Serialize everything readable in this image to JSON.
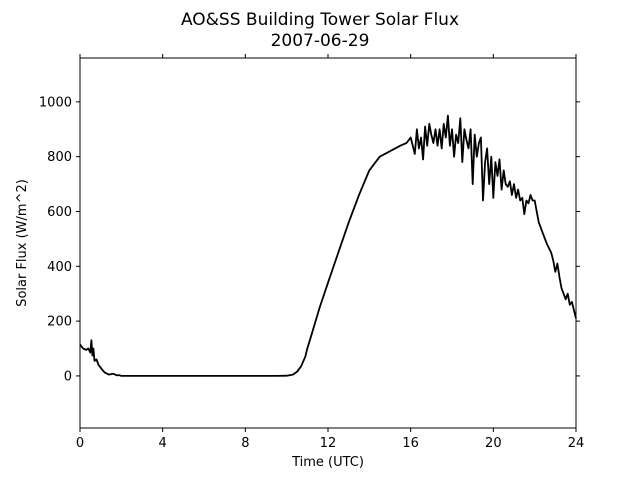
{
  "chart_data": {
    "type": "line",
    "title": "AO&SS Building Tower Solar Flux",
    "subtitle": "2007-06-29",
    "xlabel": "Time (UTC)",
    "ylabel": "Solar Flux (W/m^2)",
    "xlim": [
      0,
      24
    ],
    "ylim": [
      -190,
      1160
    ],
    "xticks": [
      0,
      4,
      8,
      12,
      16,
      20,
      24
    ],
    "yticks": [
      0,
      200,
      400,
      600,
      800,
      1000
    ],
    "grid": false,
    "legend": "none",
    "line_color": "#000000",
    "series": [
      {
        "x": [
          0,
          0.15,
          0.3,
          0.4,
          0.5,
          0.55,
          0.6,
          0.65,
          0.7,
          0.8,
          0.9,
          1.0,
          1.1,
          1.2,
          1.4,
          1.6,
          1.8,
          1.9,
          2.0,
          2.1,
          2.2,
          2.5,
          3,
          4,
          5,
          6,
          7,
          8,
          9,
          9.5,
          10.0,
          10.3,
          10.5,
          10.7,
          10.9,
          11.0,
          11.2,
          11.4,
          11.6,
          12.0,
          12.5,
          13.0,
          13.5,
          14.0,
          14.5,
          15.0,
          15.5,
          15.8,
          16.0,
          16.2,
          16.3,
          16.4,
          16.5,
          16.6,
          16.7,
          16.8,
          16.9,
          17.0,
          17.1,
          17.2,
          17.3,
          17.4,
          17.5,
          17.6,
          17.7,
          17.8,
          17.9,
          18.0,
          18.1,
          18.2,
          18.3,
          18.4,
          18.5,
          18.6,
          18.7,
          18.8,
          18.9,
          19.0,
          19.1,
          19.2,
          19.3,
          19.4,
          19.5,
          19.6,
          19.7,
          19.8,
          19.9,
          20.0,
          20.1,
          20.2,
          20.3,
          20.4,
          20.5,
          20.6,
          20.7,
          20.8,
          20.9,
          21.0,
          21.1,
          21.2,
          21.3,
          21.4,
          21.5,
          21.6,
          21.7,
          21.8,
          21.9,
          22.0,
          22.1,
          22.2,
          22.4,
          22.6,
          22.8,
          22.9,
          23.0,
          23.1,
          23.2,
          23.3,
          23.4,
          23.5,
          23.6,
          23.7,
          23.8,
          23.9,
          24.0
        ],
        "y": [
          115,
          100,
          95,
          100,
          85,
          130,
          75,
          100,
          55,
          60,
          40,
          30,
          20,
          12,
          5,
          8,
          2,
          3,
          0,
          0,
          0,
          0,
          0,
          0,
          0,
          0,
          0,
          0,
          0,
          0,
          1,
          5,
          15,
          35,
          70,
          100,
          150,
          200,
          250,
          340,
          450,
          560,
          660,
          750,
          800,
          820,
          840,
          850,
          870,
          810,
          900,
          830,
          870,
          790,
          910,
          840,
          920,
          880,
          850,
          900,
          840,
          900,
          830,
          920,
          870,
          950,
          840,
          900,
          800,
          880,
          850,
          940,
          780,
          900,
          860,
          830,
          900,
          700,
          880,
          800,
          850,
          870,
          640,
          780,
          830,
          700,
          800,
          650,
          780,
          730,
          790,
          680,
          750,
          700,
          690,
          710,
          660,
          700,
          650,
          680,
          640,
          650,
          590,
          640,
          630,
          660,
          640,
          640,
          600,
          560,
          520,
          480,
          450,
          420,
          380,
          410,
          360,
          320,
          300,
          280,
          300,
          260,
          270,
          240,
          210
        ]
      }
    ]
  }
}
